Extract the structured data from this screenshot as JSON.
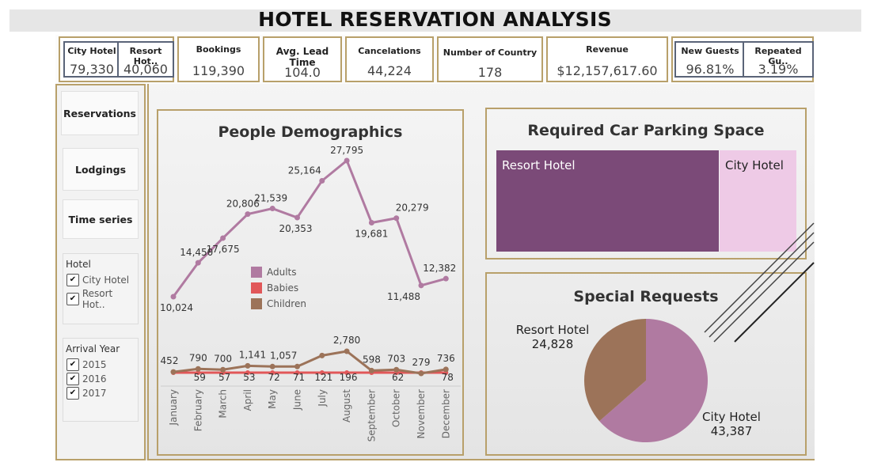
{
  "header": {
    "title": "HOTEL RESERVATION ANALYSIS"
  },
  "kpis": {
    "city_hotel": {
      "label": "City Hotel",
      "value": "79,330"
    },
    "resort_hotel": {
      "label": "Resort Hot..",
      "value": "40,060"
    },
    "bookings": {
      "label": "Bookings",
      "value": "119,390"
    },
    "lead_time": {
      "label": "Avg. Lead Time",
      "value": "104.0"
    },
    "cancelations": {
      "label": "Cancelations",
      "value": "44,224"
    },
    "countries": {
      "label": "Number of Country",
      "value": "178"
    },
    "revenue": {
      "label": "Revenue",
      "value": "$12,157,617.60"
    },
    "new_guests": {
      "label": "New Guests",
      "value": "96.81%"
    },
    "repeated_guests": {
      "label": "Repeated Gu..",
      "value": "3.19%"
    }
  },
  "sidebar": {
    "nav": [
      "Reservations",
      "Lodgings",
      "Time series"
    ],
    "hotel_filter": {
      "title": "Hotel",
      "items": [
        "City Hotel",
        "Resort Hot.."
      ]
    },
    "year_filter": {
      "title": "Arrival Year",
      "items": [
        "2015",
        "2016",
        "2017"
      ]
    }
  },
  "demographics": {
    "title": "People Demographics",
    "chart_data": {
      "type": "line",
      "categories": [
        "January",
        "February",
        "March",
        "April",
        "May",
        "June",
        "July",
        "August",
        "September",
        "October",
        "November",
        "December"
      ],
      "series": [
        {
          "name": "Adults",
          "color": "#b07aa1",
          "values": [
            10024,
            14450,
            17675,
            20806,
            21539,
            20353,
            25164,
            27795,
            19681,
            20279,
            11488,
            12382
          ],
          "labels": [
            "10,024",
            "14,450",
            "17,675",
            "20,806",
            "21,539",
            "20,353",
            "25,164",
            "27,795",
            "19,681",
            "20,279",
            "11,488",
            "12,382"
          ]
        },
        {
          "name": "Babies",
          "color": "#e15759",
          "values": [
            null,
            null,
            null,
            null,
            null,
            null,
            null,
            null,
            null,
            null,
            null,
            null
          ],
          "labels": []
        },
        {
          "name": "Children",
          "color": "#9c7359",
          "values": [
            452,
            790,
            700,
            1141,
            1057,
            1057,
            2300,
            2780,
            598,
            703,
            279,
            736
          ],
          "labels": [
            "452",
            "790",
            "700",
            "1,141",
            "1,057",
            "",
            "",
            "2,780",
            "598",
            "703",
            "279",
            "736"
          ]
        }
      ],
      "baby_labels": [
        "",
        "59",
        "57",
        "53",
        "72",
        "71",
        "121",
        "196",
        "",
        "62",
        "",
        "78"
      ],
      "legend": [
        "Adults",
        "Babies",
        "Children"
      ]
    }
  },
  "parking": {
    "title": "Required Car Parking Space",
    "chart_data": {
      "type": "treemap",
      "categories": [
        "Resort Hotel",
        "City Hotel"
      ],
      "colors": [
        "#7b4a78",
        "#eecae6"
      ]
    }
  },
  "special_requests": {
    "title": "Special Requests",
    "chart_data": {
      "type": "pie",
      "categories": [
        "Resort Hotel",
        "City Hotel"
      ],
      "values": [
        24828,
        43387
      ],
      "labels": [
        "24,828",
        "43,387"
      ],
      "colors": [
        "#9c7359",
        "#b07aa1"
      ]
    }
  }
}
